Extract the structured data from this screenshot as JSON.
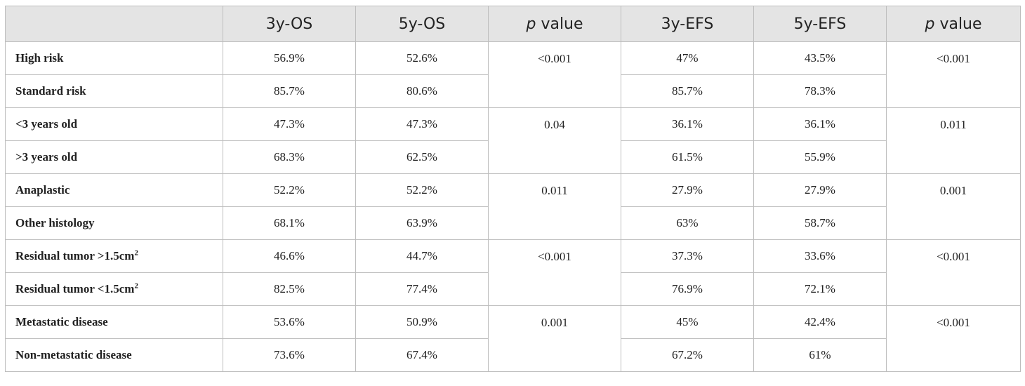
{
  "table": {
    "headers": [
      "",
      "3y-OS",
      "5y-OS",
      "value",
      "3y-EFS",
      "5y-EFS",
      "value"
    ],
    "p_prefix": "p",
    "rows": [
      {
        "label": "High risk",
        "sup": "",
        "os3": "56.9%",
        "os5": "52.6%",
        "efs3": "47%",
        "efs5": "43.5%"
      },
      {
        "label": "Standard risk",
        "sup": "",
        "os3": "85.7%",
        "os5": "80.6%",
        "efs3": "85.7%",
        "efs5": "78.3%"
      },
      {
        "label": "<3 years old",
        "sup": "",
        "os3": "47.3%",
        "os5": "47.3%",
        "efs3": "36.1%",
        "efs5": "36.1%"
      },
      {
        "label": ">3 years old",
        "sup": "",
        "os3": "68.3%",
        "os5": "62.5%",
        "efs3": "61.5%",
        "efs5": "55.9%"
      },
      {
        "label": "Anaplastic",
        "sup": "",
        "os3": "52.2%",
        "os5": "52.2%",
        "efs3": "27.9%",
        "efs5": "27.9%"
      },
      {
        "label": "Other histology",
        "sup": "",
        "os3": "68.1%",
        "os5": "63.9%",
        "efs3": "63%",
        "efs5": "58.7%"
      },
      {
        "label": "Residual tumor >1.5cm",
        "sup": "2",
        "os3": "46.6%",
        "os5": "44.7%",
        "efs3": "37.3%",
        "efs5": "33.6%"
      },
      {
        "label": "Residual tumor <1.5cm",
        "sup": "2",
        "os3": "82.5%",
        "os5": "77.4%",
        "efs3": "76.9%",
        "efs5": "72.1%"
      },
      {
        "label": "Metastatic disease",
        "sup": "",
        "os3": "53.6%",
        "os5": "50.9%",
        "efs3": "45%",
        "efs5": "42.4%"
      },
      {
        "label": "Non-metastatic disease",
        "sup": "",
        "os3": "73.6%",
        "os5": "67.4%",
        "efs3": "67.2%",
        "efs5": "61%"
      }
    ],
    "p_values": [
      {
        "os": "<0.001",
        "efs": "<0.001"
      },
      {
        "os": "0.04",
        "efs": "0.011"
      },
      {
        "os": "0.011",
        "efs": "0.001"
      },
      {
        "os": "<0.001",
        "efs": "<0.001"
      },
      {
        "os": "0.001",
        "efs": "<0.001"
      }
    ]
  }
}
